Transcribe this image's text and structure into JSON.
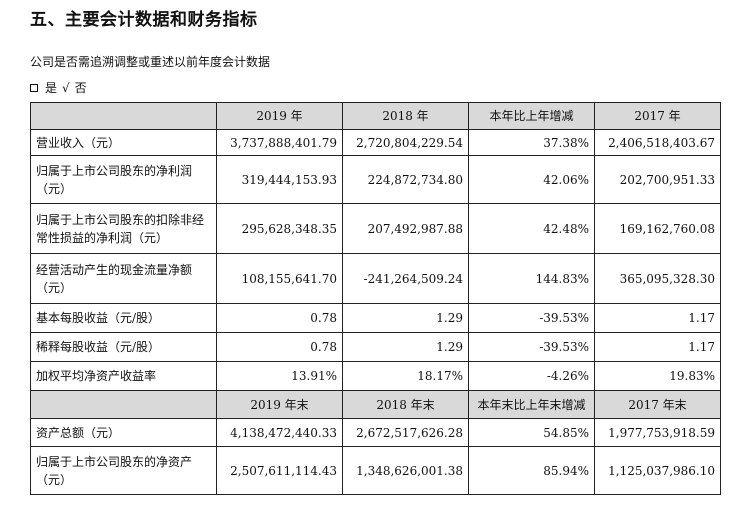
{
  "section_title": "五、主要会计数据和财务指标",
  "question": "公司是否需追溯调整或重述以前年度会计数据",
  "answer": {
    "yes": "是",
    "mark": "√",
    "no": "否"
  },
  "header": [
    "2019 年",
    "2018 年",
    "本年比上年增减",
    "2017 年"
  ],
  "rows": [
    {
      "label": "营业收入（元）",
      "values": [
        "3,737,888,401.79",
        "2,720,804,229.54",
        "37.38%",
        "2,406,518,403.67"
      ]
    },
    {
      "label": "归属于上市公司股东的净利润（元）",
      "values": [
        "319,444,153.93",
        "224,872,734.80",
        "42.06%",
        "202,700,951.33"
      ]
    },
    {
      "label": "归属于上市公司股东的扣除非经常性损益的净利润（元）",
      "values": [
        "295,628,348.35",
        "207,492,987.88",
        "42.48%",
        "169,162,760.08"
      ]
    },
    {
      "label": "经营活动产生的现金流量净额（元）",
      "values": [
        "108,155,641.70",
        "-241,264,509.24",
        "144.83%",
        "365,095,328.30"
      ]
    },
    {
      "label": "基本每股收益（元/股）",
      "values": [
        "0.78",
        "1.29",
        "-39.53%",
        "1.17"
      ]
    },
    {
      "label": "稀释每股收益（元/股）",
      "values": [
        "0.78",
        "1.29",
        "-39.53%",
        "1.17"
      ]
    },
    {
      "label": "加权平均净资产收益率",
      "values": [
        "13.91%",
        "18.17%",
        "-4.26%",
        "19.83%"
      ]
    }
  ],
  "subheader": [
    "2019 年末",
    "2018 年末",
    "本年末比上年末增减",
    "2017 年末"
  ],
  "rows2": [
    {
      "label": "资产总额（元）",
      "values": [
        "4,138,472,440.33",
        "2,672,517,626.28",
        "54.85%",
        "1,977,753,918.59"
      ]
    },
    {
      "label": "归属于上市公司股东的净资产（元）",
      "values": [
        "2,507,611,114.43",
        "1,348,626,001.38",
        "85.94%",
        "1,125,037,986.10"
      ]
    }
  ]
}
